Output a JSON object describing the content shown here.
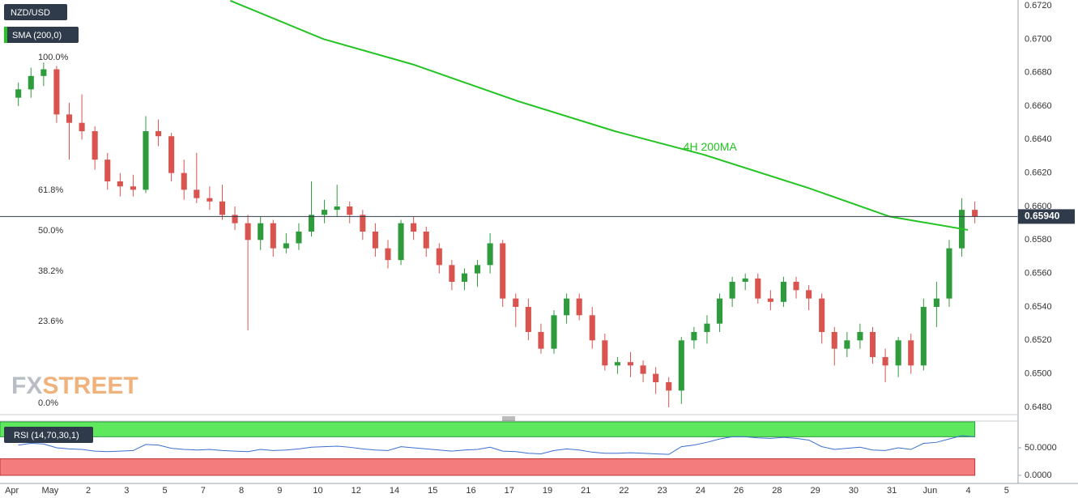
{
  "chart_data": {
    "type": "candlestick",
    "symbol": "NZD/USD",
    "indicator": "SMA (200,0)",
    "up_color": "#2e9b3d",
    "down_color": "#d9534f",
    "grid": true,
    "xlim": [
      -0.31,
      26.3
    ],
    "ylim": [
      0.64766,
      0.67234
    ],
    "xticks": [
      {
        "value": 0,
        "label": "Apr"
      },
      {
        "value": 1,
        "label": "May"
      },
      {
        "value": 2,
        "label": "2"
      },
      {
        "value": 3,
        "label": "3"
      },
      {
        "value": 4,
        "label": "5"
      },
      {
        "value": 5,
        "label": "7"
      },
      {
        "value": 6,
        "label": "8"
      },
      {
        "value": 7,
        "label": "9"
      },
      {
        "value": 8,
        "label": "10"
      },
      {
        "value": 9,
        "label": "12"
      },
      {
        "value": 10,
        "label": "14"
      },
      {
        "value": 11,
        "label": "15"
      },
      {
        "value": 12,
        "label": "16"
      },
      {
        "value": 13,
        "label": "17"
      },
      {
        "value": 14,
        "label": "19"
      },
      {
        "value": 15,
        "label": "21"
      },
      {
        "value": 16,
        "label": "22"
      },
      {
        "value": 17,
        "label": "23"
      },
      {
        "value": 18,
        "label": "24"
      },
      {
        "value": 19,
        "label": "26"
      },
      {
        "value": 20,
        "label": "28"
      },
      {
        "value": 21,
        "label": "29"
      },
      {
        "value": 22,
        "label": "30"
      },
      {
        "value": 23,
        "label": "31"
      },
      {
        "value": 24,
        "label": "Jun"
      },
      {
        "value": 25,
        "label": "4"
      },
      {
        "value": 26,
        "label": "5"
      }
    ],
    "yticks": [
      {
        "value": 0.648,
        "label": "0.6480"
      },
      {
        "value": 0.65,
        "label": "0.6500"
      },
      {
        "value": 0.652,
        "label": "0.6520"
      },
      {
        "value": 0.654,
        "label": "0.6540"
      },
      {
        "value": 0.656,
        "label": "0.6560"
      },
      {
        "value": 0.658,
        "label": "0.6580"
      },
      {
        "value": 0.66,
        "label": "0.6600"
      },
      {
        "value": 0.662,
        "label": "0.6620"
      },
      {
        "value": 0.664,
        "label": "0.6640"
      },
      {
        "value": 0.666,
        "label": "0.6660"
      },
      {
        "value": 0.668,
        "label": "0.6680"
      },
      {
        "value": 0.67,
        "label": "0.6700"
      },
      {
        "value": 0.672,
        "label": "0.6720"
      }
    ],
    "x": [
      0.17,
      0.5,
      0.83,
      1.17,
      1.5,
      1.83,
      2.17,
      2.5,
      2.83,
      3.17,
      3.5,
      3.83,
      4.17,
      4.5,
      4.83,
      5.17,
      5.5,
      5.83,
      6.17,
      6.5,
      6.83,
      7.17,
      7.5,
      7.83,
      8.17,
      8.5,
      8.83,
      9.17,
      9.5,
      9.83,
      10.17,
      10.5,
      10.83,
      11.17,
      11.5,
      11.83,
      12.17,
      12.5,
      12.83,
      13.17,
      13.5,
      13.83,
      14.17,
      14.5,
      14.83,
      15.17,
      15.5,
      15.83,
      16.17,
      16.5,
      16.83,
      17.17,
      17.5,
      17.83,
      18.17,
      18.5,
      18.83,
      19.17,
      19.5,
      19.83,
      20.17,
      20.5,
      20.83,
      21.17,
      21.5,
      21.83,
      22.17,
      22.5,
      22.83,
      23.17,
      23.5,
      23.83,
      24.17,
      24.5,
      24.83,
      25.17
    ],
    "ohlc": [
      [
        0.6665,
        0.6674,
        0.666,
        0.667
      ],
      [
        0.667,
        0.6683,
        0.6665,
        0.6678
      ],
      [
        0.6678,
        0.6686,
        0.6672,
        0.6682
      ],
      [
        0.6682,
        0.6684,
        0.665,
        0.6655
      ],
      [
        0.6655,
        0.6662,
        0.6628,
        0.665
      ],
      [
        0.665,
        0.6667,
        0.664,
        0.6645
      ],
      [
        0.6645,
        0.6648,
        0.6622,
        0.6628
      ],
      [
        0.6628,
        0.6632,
        0.661,
        0.6615
      ],
      [
        0.6615,
        0.662,
        0.6606,
        0.6612
      ],
      [
        0.6612,
        0.6619,
        0.6606,
        0.661
      ],
      [
        0.661,
        0.6654,
        0.6608,
        0.6645
      ],
      [
        0.6645,
        0.6652,
        0.6636,
        0.6642
      ],
      [
        0.6642,
        0.6644,
        0.6615,
        0.662
      ],
      [
        0.662,
        0.6628,
        0.6604,
        0.661
      ],
      [
        0.661,
        0.6632,
        0.6602,
        0.6605
      ],
      [
        0.6605,
        0.6612,
        0.6598,
        0.6603
      ],
      [
        0.6603,
        0.6613,
        0.6592,
        0.6595
      ],
      [
        0.6595,
        0.66,
        0.6586,
        0.659
      ],
      [
        0.659,
        0.6595,
        0.6526,
        0.658
      ],
      [
        0.658,
        0.6594,
        0.6574,
        0.659
      ],
      [
        0.659,
        0.6592,
        0.657,
        0.6575
      ],
      [
        0.6575,
        0.6584,
        0.6572,
        0.6578
      ],
      [
        0.6578,
        0.659,
        0.6574,
        0.6585
      ],
      [
        0.6585,
        0.6615,
        0.6582,
        0.6595
      ],
      [
        0.6595,
        0.6604,
        0.659,
        0.6598
      ],
      [
        0.6598,
        0.6613,
        0.6594,
        0.66
      ],
      [
        0.66,
        0.6603,
        0.659,
        0.6595
      ],
      [
        0.6595,
        0.6598,
        0.658,
        0.6585
      ],
      [
        0.6585,
        0.659,
        0.657,
        0.6575
      ],
      [
        0.6575,
        0.658,
        0.6563,
        0.6568
      ],
      [
        0.6568,
        0.6592,
        0.6565,
        0.659
      ],
      [
        0.659,
        0.6594,
        0.658,
        0.6585
      ],
      [
        0.6585,
        0.6588,
        0.657,
        0.6575
      ],
      [
        0.6575,
        0.6578,
        0.656,
        0.6565
      ],
      [
        0.6565,
        0.6568,
        0.655,
        0.6555
      ],
      [
        0.6555,
        0.6563,
        0.655,
        0.656
      ],
      [
        0.656,
        0.6568,
        0.6552,
        0.6565
      ],
      [
        0.6565,
        0.6584,
        0.656,
        0.6578
      ],
      [
        0.6578,
        0.658,
        0.654,
        0.6545
      ],
      [
        0.6545,
        0.6548,
        0.6528,
        0.654
      ],
      [
        0.654,
        0.6545,
        0.652,
        0.6525
      ],
      [
        0.6525,
        0.653,
        0.6512,
        0.6515
      ],
      [
        0.6515,
        0.6538,
        0.6512,
        0.6535
      ],
      [
        0.6535,
        0.6548,
        0.653,
        0.6545
      ],
      [
        0.6545,
        0.6548,
        0.6532,
        0.6535
      ],
      [
        0.6535,
        0.654,
        0.6515,
        0.652
      ],
      [
        0.652,
        0.6524,
        0.6502,
        0.6505
      ],
      [
        0.6505,
        0.651,
        0.65,
        0.6507
      ],
      [
        0.6507,
        0.6513,
        0.6498,
        0.6505
      ],
      [
        0.6505,
        0.6508,
        0.6495,
        0.65
      ],
      [
        0.65,
        0.6504,
        0.6488,
        0.6495
      ],
      [
        0.6495,
        0.6498,
        0.648,
        0.649
      ],
      [
        0.649,
        0.6522,
        0.6482,
        0.652
      ],
      [
        0.652,
        0.6528,
        0.6515,
        0.6525
      ],
      [
        0.6525,
        0.6535,
        0.6518,
        0.653
      ],
      [
        0.653,
        0.6548,
        0.6525,
        0.6545
      ],
      [
        0.6545,
        0.6558,
        0.654,
        0.6555
      ],
      [
        0.6555,
        0.656,
        0.655,
        0.6557
      ],
      [
        0.6557,
        0.656,
        0.6542,
        0.6545
      ],
      [
        0.6545,
        0.655,
        0.6538,
        0.6543
      ],
      [
        0.6543,
        0.6558,
        0.654,
        0.6555
      ],
      [
        0.6555,
        0.6558,
        0.6545,
        0.655
      ],
      [
        0.655,
        0.6553,
        0.6538,
        0.6545
      ],
      [
        0.6545,
        0.6548,
        0.6518,
        0.6525
      ],
      [
        0.6525,
        0.6528,
        0.6505,
        0.6515
      ],
      [
        0.6515,
        0.6525,
        0.651,
        0.652
      ],
      [
        0.652,
        0.653,
        0.6515,
        0.6525
      ],
      [
        0.6525,
        0.6528,
        0.6506,
        0.651
      ],
      [
        0.651,
        0.6515,
        0.6495,
        0.6505
      ],
      [
        0.6505,
        0.6522,
        0.6498,
        0.652
      ],
      [
        0.652,
        0.6524,
        0.65,
        0.6505
      ],
      [
        0.6505,
        0.6545,
        0.6502,
        0.654
      ],
      [
        0.654,
        0.6555,
        0.6528,
        0.6545
      ],
      [
        0.6545,
        0.658,
        0.654,
        0.6575
      ],
      [
        0.6575,
        0.6605,
        0.657,
        0.6598
      ],
      [
        0.6598,
        0.6603,
        0.659,
        0.6594
      ]
    ],
    "sma": {
      "color": "#22c322",
      "x": [
        5.71,
        8.15,
        10.47,
        13.22,
        15.76,
        18.08,
        20.83,
        22.94,
        24.99
      ],
      "values": [
        0.6723,
        0.67,
        0.6685,
        0.6663,
        0.6645,
        0.6631,
        0.6611,
        0.6594,
        0.6586
      ]
    },
    "annotation": {
      "text": "4H 200MA",
      "x": 17.55,
      "y": 0.66353
    },
    "fib_levels": [
      {
        "label": "100.0%",
        "price": 0.6686
      },
      {
        "label": "61.8%",
        "price": 0.66068
      },
      {
        "label": "50.0%",
        "price": 0.65826
      },
      {
        "label": "38.2%",
        "price": 0.65584
      },
      {
        "label": "23.6%",
        "price": 0.65284
      },
      {
        "label": "0.0%",
        "price": 0.64795
      }
    ],
    "price_line": {
      "value": 0.6594,
      "label": "0.65940"
    },
    "watermark": [
      "FX",
      "STREET"
    ],
    "rsi": {
      "title": "RSI (14,70,30,1)",
      "color": "#3a6fd0",
      "ylim": [
        -14.7,
        98.5
      ],
      "yticks": [
        {
          "value": 50,
          "label": "50.0000"
        },
        {
          "value": 0,
          "label": "0.0000"
        }
      ],
      "upper": 70,
      "lower": 30,
      "values": [
        55,
        58,
        57,
        50,
        48,
        47,
        44,
        43,
        44,
        45,
        56,
        55,
        49,
        47,
        46,
        47,
        45,
        44,
        43,
        47,
        45,
        46,
        48,
        51,
        52,
        53,
        51,
        48,
        46,
        45,
        52,
        50,
        48,
        46,
        44,
        46,
        47,
        51,
        44,
        43,
        40,
        39,
        45,
        48,
        46,
        42,
        40,
        40,
        41,
        40,
        39,
        38,
        52,
        55,
        60,
        66,
        70,
        70,
        68,
        67,
        69,
        67,
        64,
        52,
        47,
        49,
        51,
        46,
        45,
        50,
        47,
        58,
        60,
        66,
        72,
        70
      ]
    }
  }
}
